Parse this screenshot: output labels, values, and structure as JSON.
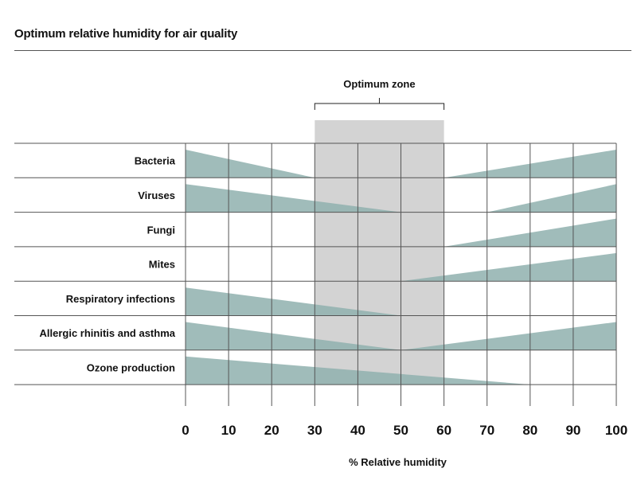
{
  "title": "Optimum relative humidity for air quality",
  "chart_data": {
    "type": "range-wedge",
    "title": "Optimum relative humidity for air quality",
    "xlabel": "% Relative humidity",
    "xlim": [
      0,
      100
    ],
    "xticks": [
      0,
      10,
      20,
      30,
      40,
      50,
      60,
      70,
      80,
      90,
      100
    ],
    "optimum_zone": {
      "label": "Optimum zone",
      "range": [
        30,
        60
      ]
    },
    "colors": {
      "wedge": "#8fb0ae",
      "zone": "#d3d3d3",
      "grid": "#555555"
    },
    "rows": [
      {
        "label": "Bacteria",
        "wedges": [
          {
            "from": 0,
            "to": 30,
            "direction": "decreasing"
          },
          {
            "from": 60,
            "to": 100,
            "direction": "increasing"
          }
        ]
      },
      {
        "label": "Viruses",
        "wedges": [
          {
            "from": 0,
            "to": 50,
            "direction": "decreasing"
          },
          {
            "from": 70,
            "to": 100,
            "direction": "increasing"
          }
        ]
      },
      {
        "label": "Fungi",
        "wedges": [
          {
            "from": 60,
            "to": 100,
            "direction": "increasing"
          }
        ]
      },
      {
        "label": "Mites",
        "wedges": [
          {
            "from": 50,
            "to": 100,
            "direction": "increasing"
          }
        ]
      },
      {
        "label": "Respiratory infections",
        "wedges": [
          {
            "from": 0,
            "to": 50,
            "direction": "decreasing"
          }
        ]
      },
      {
        "label": "Allergic rhinitis and asthma",
        "wedges": [
          {
            "from": 0,
            "to": 50,
            "direction": "decreasing"
          },
          {
            "from": 50,
            "to": 100,
            "direction": "increasing"
          }
        ]
      },
      {
        "label": "Ozone production",
        "wedges": [
          {
            "from": 0,
            "to": 80,
            "direction": "decreasing"
          }
        ]
      }
    ]
  }
}
